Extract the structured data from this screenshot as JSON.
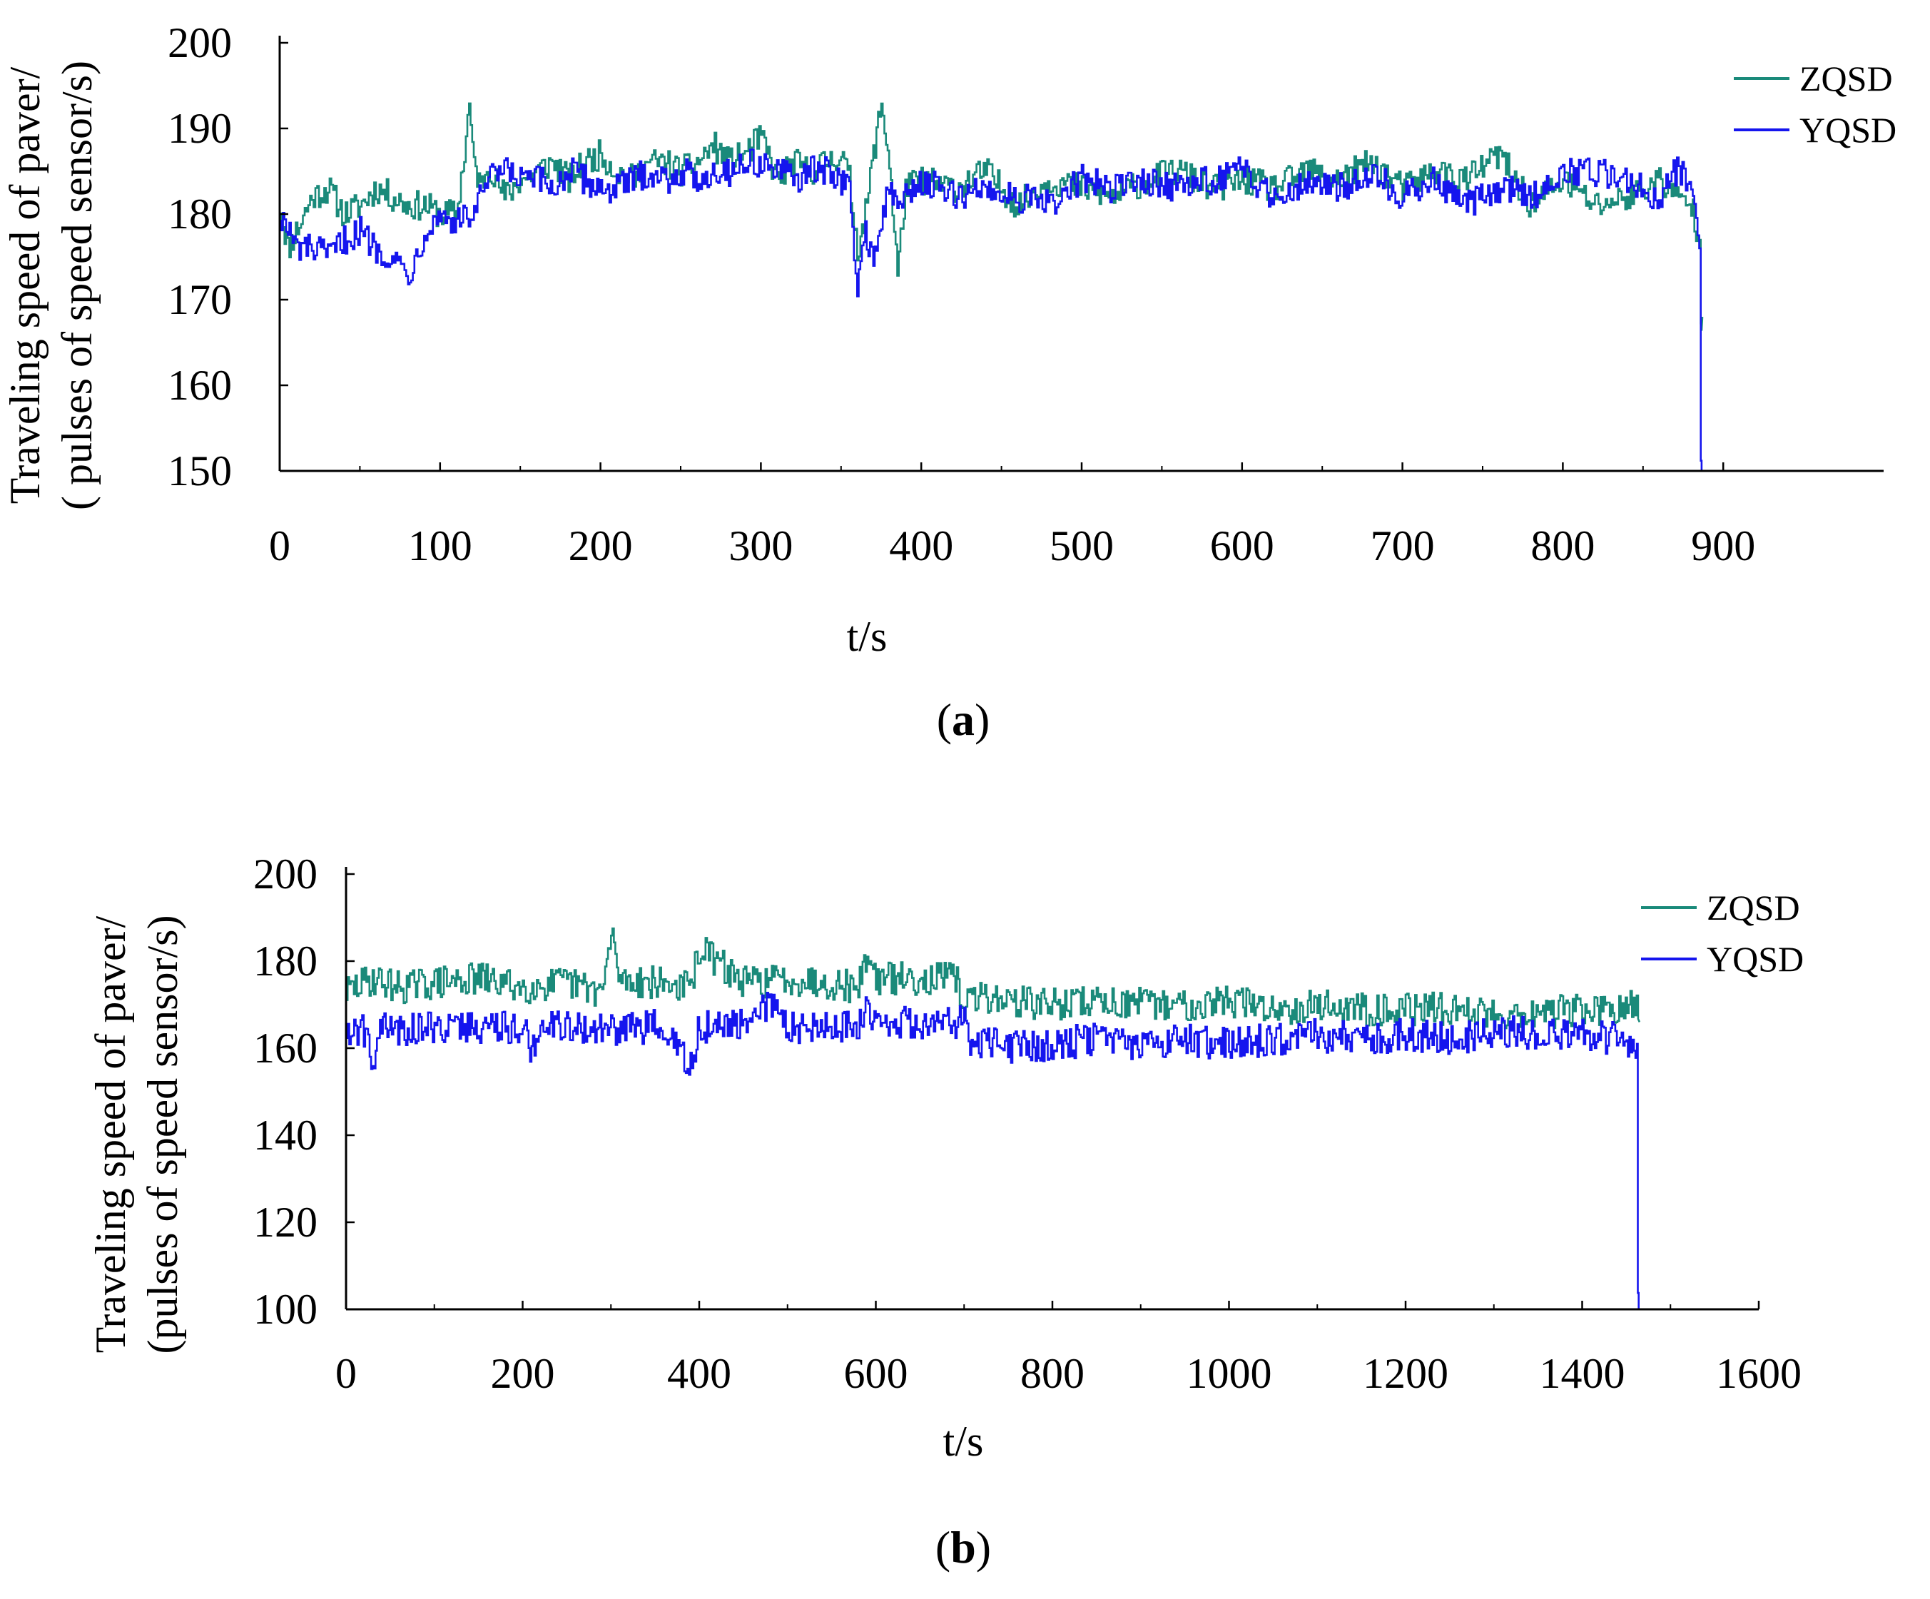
{
  "chart_data": [
    {
      "type": "line",
      "panel_label": "a",
      "title": "",
      "xlabel": "t/s",
      "ylabel_line1": "Traveling speed of paver/",
      "ylabel_line2": "( pulses of speed sensor/s)",
      "xlim": [
        0,
        1000
      ],
      "ylim": [
        150,
        200
      ],
      "xticks": [
        0,
        100,
        200,
        300,
        400,
        500,
        600,
        700,
        800,
        900
      ],
      "yticks": [
        150,
        160,
        170,
        180,
        190,
        200
      ],
      "legend_position": "top-right",
      "series": [
        {
          "name": "ZQSD",
          "color": "#1a8a7a",
          "x": [
            0,
            5,
            10,
            20,
            30,
            40,
            50,
            60,
            70,
            80,
            90,
            100,
            110,
            115,
            118,
            120,
            125,
            130,
            140,
            150,
            160,
            170,
            180,
            190,
            200,
            210,
            220,
            230,
            240,
            250,
            260,
            270,
            280,
            290,
            300,
            310,
            320,
            330,
            340,
            350,
            355,
            360,
            365,
            370,
            375,
            380,
            385,
            390,
            400,
            420,
            440,
            460,
            480,
            500,
            520,
            540,
            560,
            580,
            600,
            620,
            640,
            660,
            680,
            700,
            720,
            740,
            760,
            780,
            800,
            820,
            840,
            860,
            870,
            880,
            885,
            886,
            887
          ],
          "values": [
            181,
            176,
            178,
            182,
            183,
            180,
            181,
            183,
            182,
            181,
            181,
            180,
            180,
            187,
            193,
            187,
            183,
            186,
            182,
            184,
            185,
            186,
            184,
            186,
            187,
            185,
            184,
            186,
            186,
            185,
            186,
            188,
            186,
            187,
            189,
            184,
            186,
            185,
            186,
            187,
            184,
            176,
            180,
            187,
            193,
            186,
            173,
            183,
            184,
            183,
            185,
            181,
            184,
            183,
            182,
            184,
            185,
            183,
            184,
            183,
            185,
            184,
            186,
            183,
            185,
            184,
            187,
            181,
            184,
            181,
            182,
            184,
            182,
            181,
            177,
            168,
            168
          ]
        },
        {
          "name": "YQSD",
          "color": "#1515ee",
          "x": [
            0,
            5,
            10,
            20,
            30,
            40,
            50,
            60,
            70,
            80,
            85,
            90,
            100,
            110,
            120,
            130,
            140,
            150,
            160,
            170,
            180,
            190,
            200,
            210,
            220,
            230,
            240,
            250,
            260,
            270,
            280,
            290,
            300,
            310,
            320,
            330,
            340,
            350,
            355,
            360,
            365,
            370,
            375,
            380,
            385,
            390,
            400,
            420,
            440,
            460,
            480,
            500,
            520,
            540,
            560,
            580,
            600,
            620,
            640,
            660,
            680,
            700,
            720,
            740,
            760,
            780,
            800,
            820,
            840,
            860,
            870,
            880,
            885,
            886,
            887
          ],
          "values": [
            180,
            178,
            176,
            176,
            175,
            177,
            178,
            176,
            175,
            173,
            175,
            178,
            180,
            179,
            180,
            184,
            185,
            184,
            184,
            183,
            185,
            184,
            183,
            183,
            184,
            185,
            184,
            185,
            184,
            185,
            185,
            186,
            186,
            185,
            184,
            185,
            185,
            184,
            183,
            171,
            178,
            175,
            179,
            183,
            181,
            182,
            184,
            182,
            183,
            182,
            181,
            184,
            183,
            184,
            183,
            184,
            185,
            182,
            184,
            183,
            185,
            182,
            184,
            181,
            183,
            182,
            185,
            185,
            184,
            182,
            185,
            184,
            176,
            150,
            150
          ]
        }
      ]
    },
    {
      "type": "line",
      "panel_label": "b",
      "title": "",
      "xlabel": "t/s",
      "ylabel_line1": "Traveling speed of paver/",
      "ylabel_line2": "(pulses of speed sensor/s)",
      "xlim": [
        0,
        1600
      ],
      "ylim": [
        100,
        200
      ],
      "xticks": [
        0,
        200,
        400,
        600,
        800,
        1000,
        1200,
        1400,
        1600
      ],
      "yticks": [
        100,
        120,
        140,
        160,
        180,
        200
      ],
      "legend_position": "top-right",
      "series": [
        {
          "name": "ZQSD",
          "color": "#1a8a7a",
          "x": [
            0,
            30,
            60,
            100,
            150,
            200,
            250,
            290,
            300,
            310,
            350,
            390,
            400,
            450,
            500,
            550,
            580,
            590,
            600,
            650,
            690,
            700,
            720,
            750,
            800,
            850,
            900,
            950,
            1000,
            1050,
            1100,
            1150,
            1200,
            1250,
            1300,
            1350,
            1400,
            1440,
            1460,
            1465
          ],
          "values": [
            173,
            176,
            174,
            175,
            176,
            174,
            175,
            173,
            186,
            176,
            175,
            174,
            183,
            175,
            176,
            175,
            174,
            182,
            176,
            176,
            176,
            170,
            172,
            171,
            170,
            171,
            170,
            170,
            171,
            169,
            170,
            169,
            169,
            169,
            168,
            168,
            169,
            168,
            170,
            166
          ]
        },
        {
          "name": "YQSD",
          "color": "#1515ee",
          "x": [
            0,
            20,
            30,
            40,
            50,
            100,
            150,
            200,
            210,
            220,
            250,
            300,
            350,
            390,
            400,
            450,
            480,
            500,
            550,
            580,
            590,
            600,
            650,
            690,
            700,
            710,
            720,
            760,
            800,
            850,
            900,
            950,
            1000,
            1050,
            1100,
            1150,
            1200,
            1250,
            1300,
            1350,
            1400,
            1450,
            1462,
            1463,
            1465
          ],
          "values": [
            164,
            164,
            158,
            165,
            164,
            165,
            165,
            165,
            158,
            167,
            165,
            164,
            165,
            156,
            165,
            165,
            170,
            165,
            165,
            165,
            170,
            166,
            166,
            166,
            166,
            160,
            162,
            160,
            161,
            162,
            161,
            162,
            161,
            162,
            163,
            162,
            163,
            162,
            164,
            163,
            163,
            162,
            161,
            100,
            100
          ]
        }
      ]
    }
  ]
}
